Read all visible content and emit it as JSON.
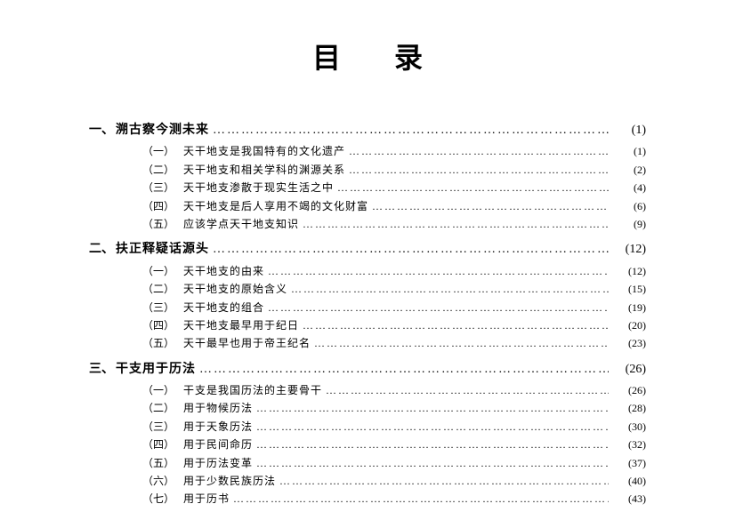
{
  "title": "目录",
  "chapters": [
    {
      "num": "一、",
      "title": "溯古察今测未来",
      "page": "(1)",
      "items": [
        {
          "num": "（一）",
          "title": "天干地支是我国特有的文化遗产",
          "page": "(1)"
        },
        {
          "num": "（二）",
          "title": "天干地支和相关学科的渊源关系",
          "page": "(2)"
        },
        {
          "num": "（三）",
          "title": "天干地支渗散于现实生活之中",
          "page": "(4)"
        },
        {
          "num": "（四）",
          "title": "天干地支是后人享用不竭的文化财富",
          "page": "(6)"
        },
        {
          "num": "（五）",
          "title": "应该学点天干地支知识",
          "page": "(9)"
        }
      ]
    },
    {
      "num": "二、",
      "title": "扶正释疑话源头",
      "page": "(12)",
      "items": [
        {
          "num": "（一）",
          "title": "天干地支的由来",
          "page": "(12)"
        },
        {
          "num": "（二）",
          "title": "天干地支的原始含义",
          "page": "(15)"
        },
        {
          "num": "（三）",
          "title": "天干地支的组合",
          "page": "(19)"
        },
        {
          "num": "（四）",
          "title": "天干地支最早用于纪日",
          "page": "(20)"
        },
        {
          "num": "（五）",
          "title": "天干最早也用于帝王纪名",
          "page": "(23)"
        }
      ]
    },
    {
      "num": "三、",
      "title": "干支用于历法",
      "page": "(26)",
      "items": [
        {
          "num": "（一）",
          "title": "干支是我国历法的主要骨干",
          "page": "(26)"
        },
        {
          "num": "（二）",
          "title": "用于物候历法",
          "page": "(28)"
        },
        {
          "num": "（三）",
          "title": "用于天象历法",
          "page": "(30)"
        },
        {
          "num": "（四）",
          "title": "用于民间命历",
          "page": "(32)"
        },
        {
          "num": "（五）",
          "title": "用于历法变革",
          "page": "(37)"
        },
        {
          "num": "（六）",
          "title": "用于少数民族历法",
          "page": "(40)"
        },
        {
          "num": "（七）",
          "title": "用于历书",
          "page": "(43)"
        }
      ]
    }
  ]
}
